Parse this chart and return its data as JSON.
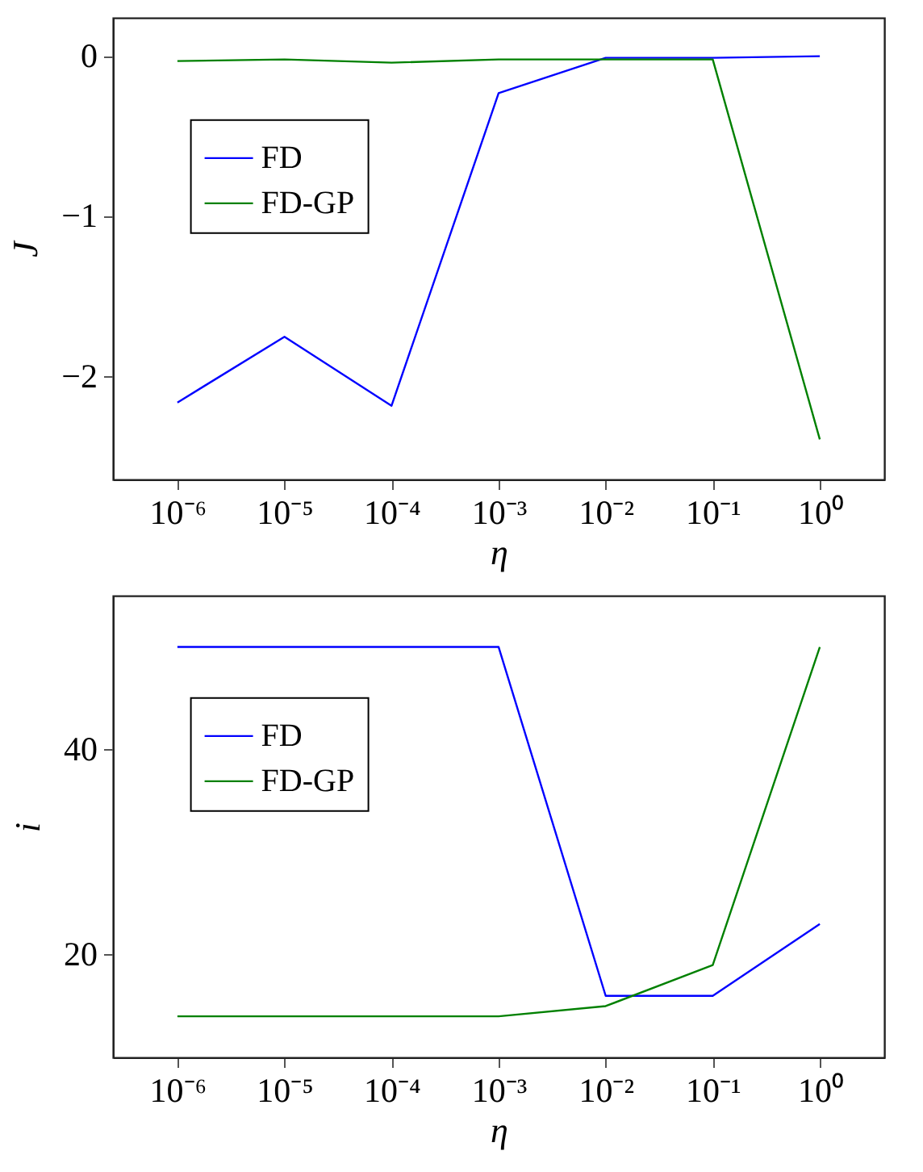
{
  "chart_data": [
    {
      "type": "line",
      "xlabel": "η",
      "ylabel": "J",
      "log": "x",
      "legend": "left",
      "grid": false,
      "x": [
        1e-06,
        1e-05,
        0.0001,
        0.001,
        0.01,
        0.1,
        1
      ],
      "xlim": [
        2.5e-07,
        4
      ],
      "xticks": [
        {
          "value": 1e-06,
          "label": "10⁻⁶"
        },
        {
          "value": 1e-05,
          "label": "10⁻⁵"
        },
        {
          "value": 0.0001,
          "label": "10⁻⁴"
        },
        {
          "value": 0.001,
          "label": "10⁻³"
        },
        {
          "value": 0.01,
          "label": "10⁻²"
        },
        {
          "value": 0.1,
          "label": "10⁻¹"
        },
        {
          "value": 1,
          "label": "10⁰"
        }
      ],
      "ylim": [
        -2.64,
        0.24
      ],
      "yticks": [
        {
          "value": -2,
          "label": "−2"
        },
        {
          "value": -1,
          "label": "−1"
        },
        0
      ],
      "series": [
        {
          "name": "FD",
          "color": "#0000ff",
          "values": [
            -2.16,
            -1.75,
            -2.18,
            -0.23,
            -0.01,
            -0.01,
            0
          ]
        },
        {
          "name": "FD-GP",
          "color": "#008000",
          "values": [
            -0.03,
            -0.02,
            -0.04,
            -0.02,
            -0.02,
            -0.02,
            -2.39
          ]
        }
      ]
    },
    {
      "type": "line",
      "xlabel": "η",
      "ylabel": "i",
      "log": "x",
      "legend": "left",
      "grid": false,
      "x": [
        1e-06,
        1e-05,
        0.0001,
        0.001,
        0.01,
        0.1,
        1
      ],
      "xlim": [
        2.5e-07,
        4
      ],
      "xticks": [
        {
          "value": 1e-06,
          "label": "10⁻⁶"
        },
        {
          "value": 1e-05,
          "label": "10⁻⁵"
        },
        {
          "value": 0.0001,
          "label": "10⁻⁴"
        },
        {
          "value": 0.001,
          "label": "10⁻³"
        },
        {
          "value": 0.01,
          "label": "10⁻²"
        },
        {
          "value": 0.1,
          "label": "10⁻¹"
        },
        {
          "value": 1,
          "label": "10⁰"
        }
      ],
      "ylim": [
        10,
        55
      ],
      "yticks": [
        20,
        40
      ],
      "series": [
        {
          "name": "FD",
          "color": "#0000ff",
          "values": [
            50,
            50,
            50,
            50,
            16,
            16,
            23
          ]
        },
        {
          "name": "FD-GP",
          "color": "#008000",
          "values": [
            14,
            14,
            14,
            14,
            15,
            19,
            50
          ]
        }
      ]
    }
  ]
}
